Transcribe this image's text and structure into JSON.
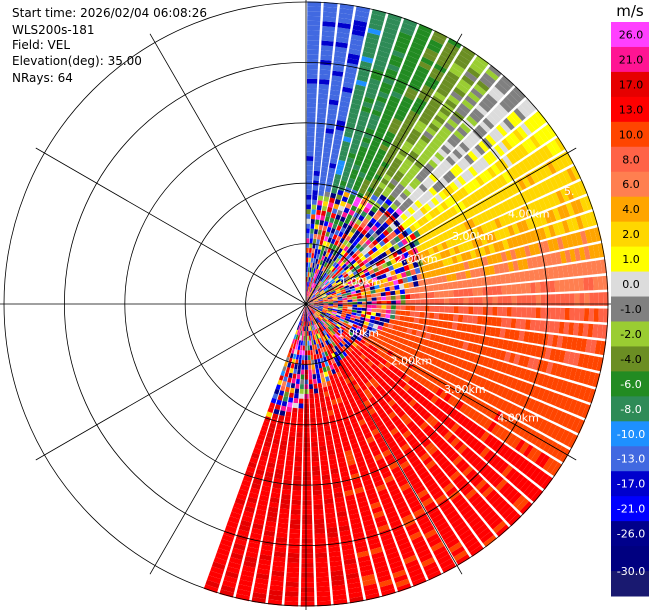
{
  "header": {
    "start_time": "Start time: 2026/02/04 06:08:26",
    "instrument": "WLS200s-181",
    "field": "Field: VEL",
    "elevation": "Elevation(deg): 35.00",
    "nrays": "NRays: 64"
  },
  "chart_data": {
    "type": "heatmap",
    "subtype": "ppi-polar",
    "grid": true,
    "range_rings_km": [
      1.0,
      2.0,
      3.0,
      4.0,
      5.0
    ],
    "range_ring_labels": [
      "1.00km",
      "2.00km",
      "3.00km",
      "4.00km",
      "5."
    ],
    "max_range_km": 5.0,
    "sector_deg": [
      0,
      200
    ],
    "nrays": 64,
    "colorbar": {
      "unit": "m/s",
      "ticks": [
        "26.0",
        "21.0",
        "17.0",
        "13.0",
        "10.0",
        "8.0",
        "6.0",
        "4.0",
        "2.0",
        "1.0",
        "0.0",
        "-1.0",
        "-2.0",
        "-4.0",
        "-6.0",
        "-8.0",
        "-10.0",
        "-13.0",
        "-17.0",
        "-21.0",
        "-26.0",
        "-30.0"
      ],
      "colors": [
        "#ff40ff",
        "#ff1493",
        "#e60000",
        "#ff0000",
        "#ff4500",
        "#ff6347",
        "#ff7f50",
        "#ffa500",
        "#ffd700",
        "#ffff00",
        "#dcdcdc",
        "#808080",
        "#9acd32",
        "#6b8e23",
        "#228b22",
        "#2e8b57",
        "#1e90ff",
        "#4169e1",
        "#0000cd",
        "#0000ff",
        "#00008b",
        "#000080",
        "#191970"
      ]
    }
  }
}
